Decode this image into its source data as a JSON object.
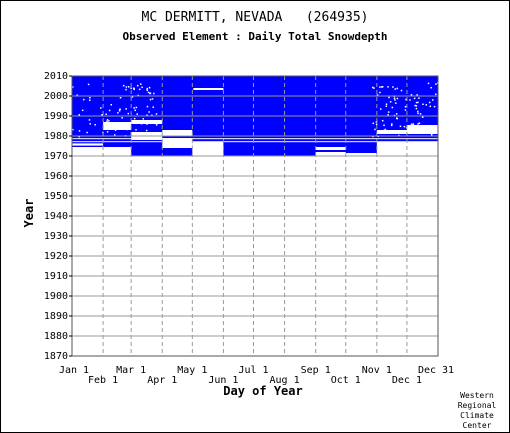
{
  "chart_data": {
    "type": "heatmap",
    "title": "MC DERMITT, NEVADA   (264935)",
    "subtitle": "Observed Element : Daily Total Snowdepth",
    "xlabel": "Day of Year",
    "ylabel": "Year",
    "x_ticks_row1": [
      "Jan 1",
      "Mar 1",
      "May 1",
      "Jul 1",
      "Sep 1",
      "Nov 1",
      "Dec 31"
    ],
    "x_ticks_row2": [
      "Feb 1",
      "Apr 1",
      "Jun 1",
      "Aug 1",
      "Oct 1",
      "Dec 1"
    ],
    "month_start_days": [
      1,
      32,
      60,
      91,
      121,
      152,
      182,
      213,
      244,
      274,
      305,
      335,
      366
    ],
    "y_ticks": [
      2010,
      2000,
      1990,
      1980,
      1970,
      1960,
      1950,
      1940,
      1930,
      1920,
      1910,
      1900,
      1890,
      1880,
      1870
    ],
    "xlim": [
      1,
      366
    ],
    "ylim": [
      1870,
      2010
    ],
    "grid": true,
    "data_color": "#0000ff",
    "data_extent": {
      "first_year": 1970,
      "last_year": 2010
    },
    "missing_year_spans": [
      {
        "from_day": 1,
        "to_day": 366,
        "from_year": 1978.4,
        "to_year": 1978.9
      },
      {
        "from_day": 1,
        "to_day": 366,
        "from_year": 1977.0,
        "to_year": 1977.4
      }
    ],
    "missing_blocks": [
      {
        "from_day": 1,
        "to_day": 60,
        "from_year": 1970,
        "to_year": 1974.5
      },
      {
        "from_day": 1,
        "to_day": 32,
        "from_year": 1975.2,
        "to_year": 1976.3
      },
      {
        "from_day": 32,
        "to_day": 60,
        "from_year": 1983,
        "to_year": 1987
      },
      {
        "from_day": 60,
        "to_day": 91,
        "from_year": 1986,
        "to_year": 1988
      },
      {
        "from_day": 60,
        "to_day": 91,
        "from_year": 1978,
        "to_year": 1982
      },
      {
        "from_day": 91,
        "to_day": 121,
        "from_year": 1974,
        "to_year": 1979
      },
      {
        "from_day": 91,
        "to_day": 121,
        "from_year": 1980,
        "to_year": 1983
      },
      {
        "from_day": 121,
        "to_day": 152,
        "from_year": 1970,
        "to_year": 1977
      },
      {
        "from_day": 244,
        "to_day": 274,
        "from_year": 1970,
        "to_year": 1972
      },
      {
        "from_day": 244,
        "to_day": 274,
        "from_year": 1973,
        "to_year": 1974.5
      },
      {
        "from_day": 274,
        "to_day": 305,
        "from_year": 1970,
        "to_year": 1971.5
      },
      {
        "from_day": 305,
        "to_day": 366,
        "from_year": 1970,
        "to_year": 1977
      },
      {
        "from_day": 305,
        "to_day": 366,
        "from_year": 1981,
        "to_year": 1983
      },
      {
        "from_day": 335,
        "to_day": 366,
        "from_year": 1983,
        "to_year": 1985.5
      }
    ],
    "missing_streaks": [
      {
        "from_day": 122,
        "to_day": 152,
        "year": 2003.5
      }
    ]
  },
  "credit": [
    "Western",
    "Regional",
    "Climate",
    "Center"
  ]
}
